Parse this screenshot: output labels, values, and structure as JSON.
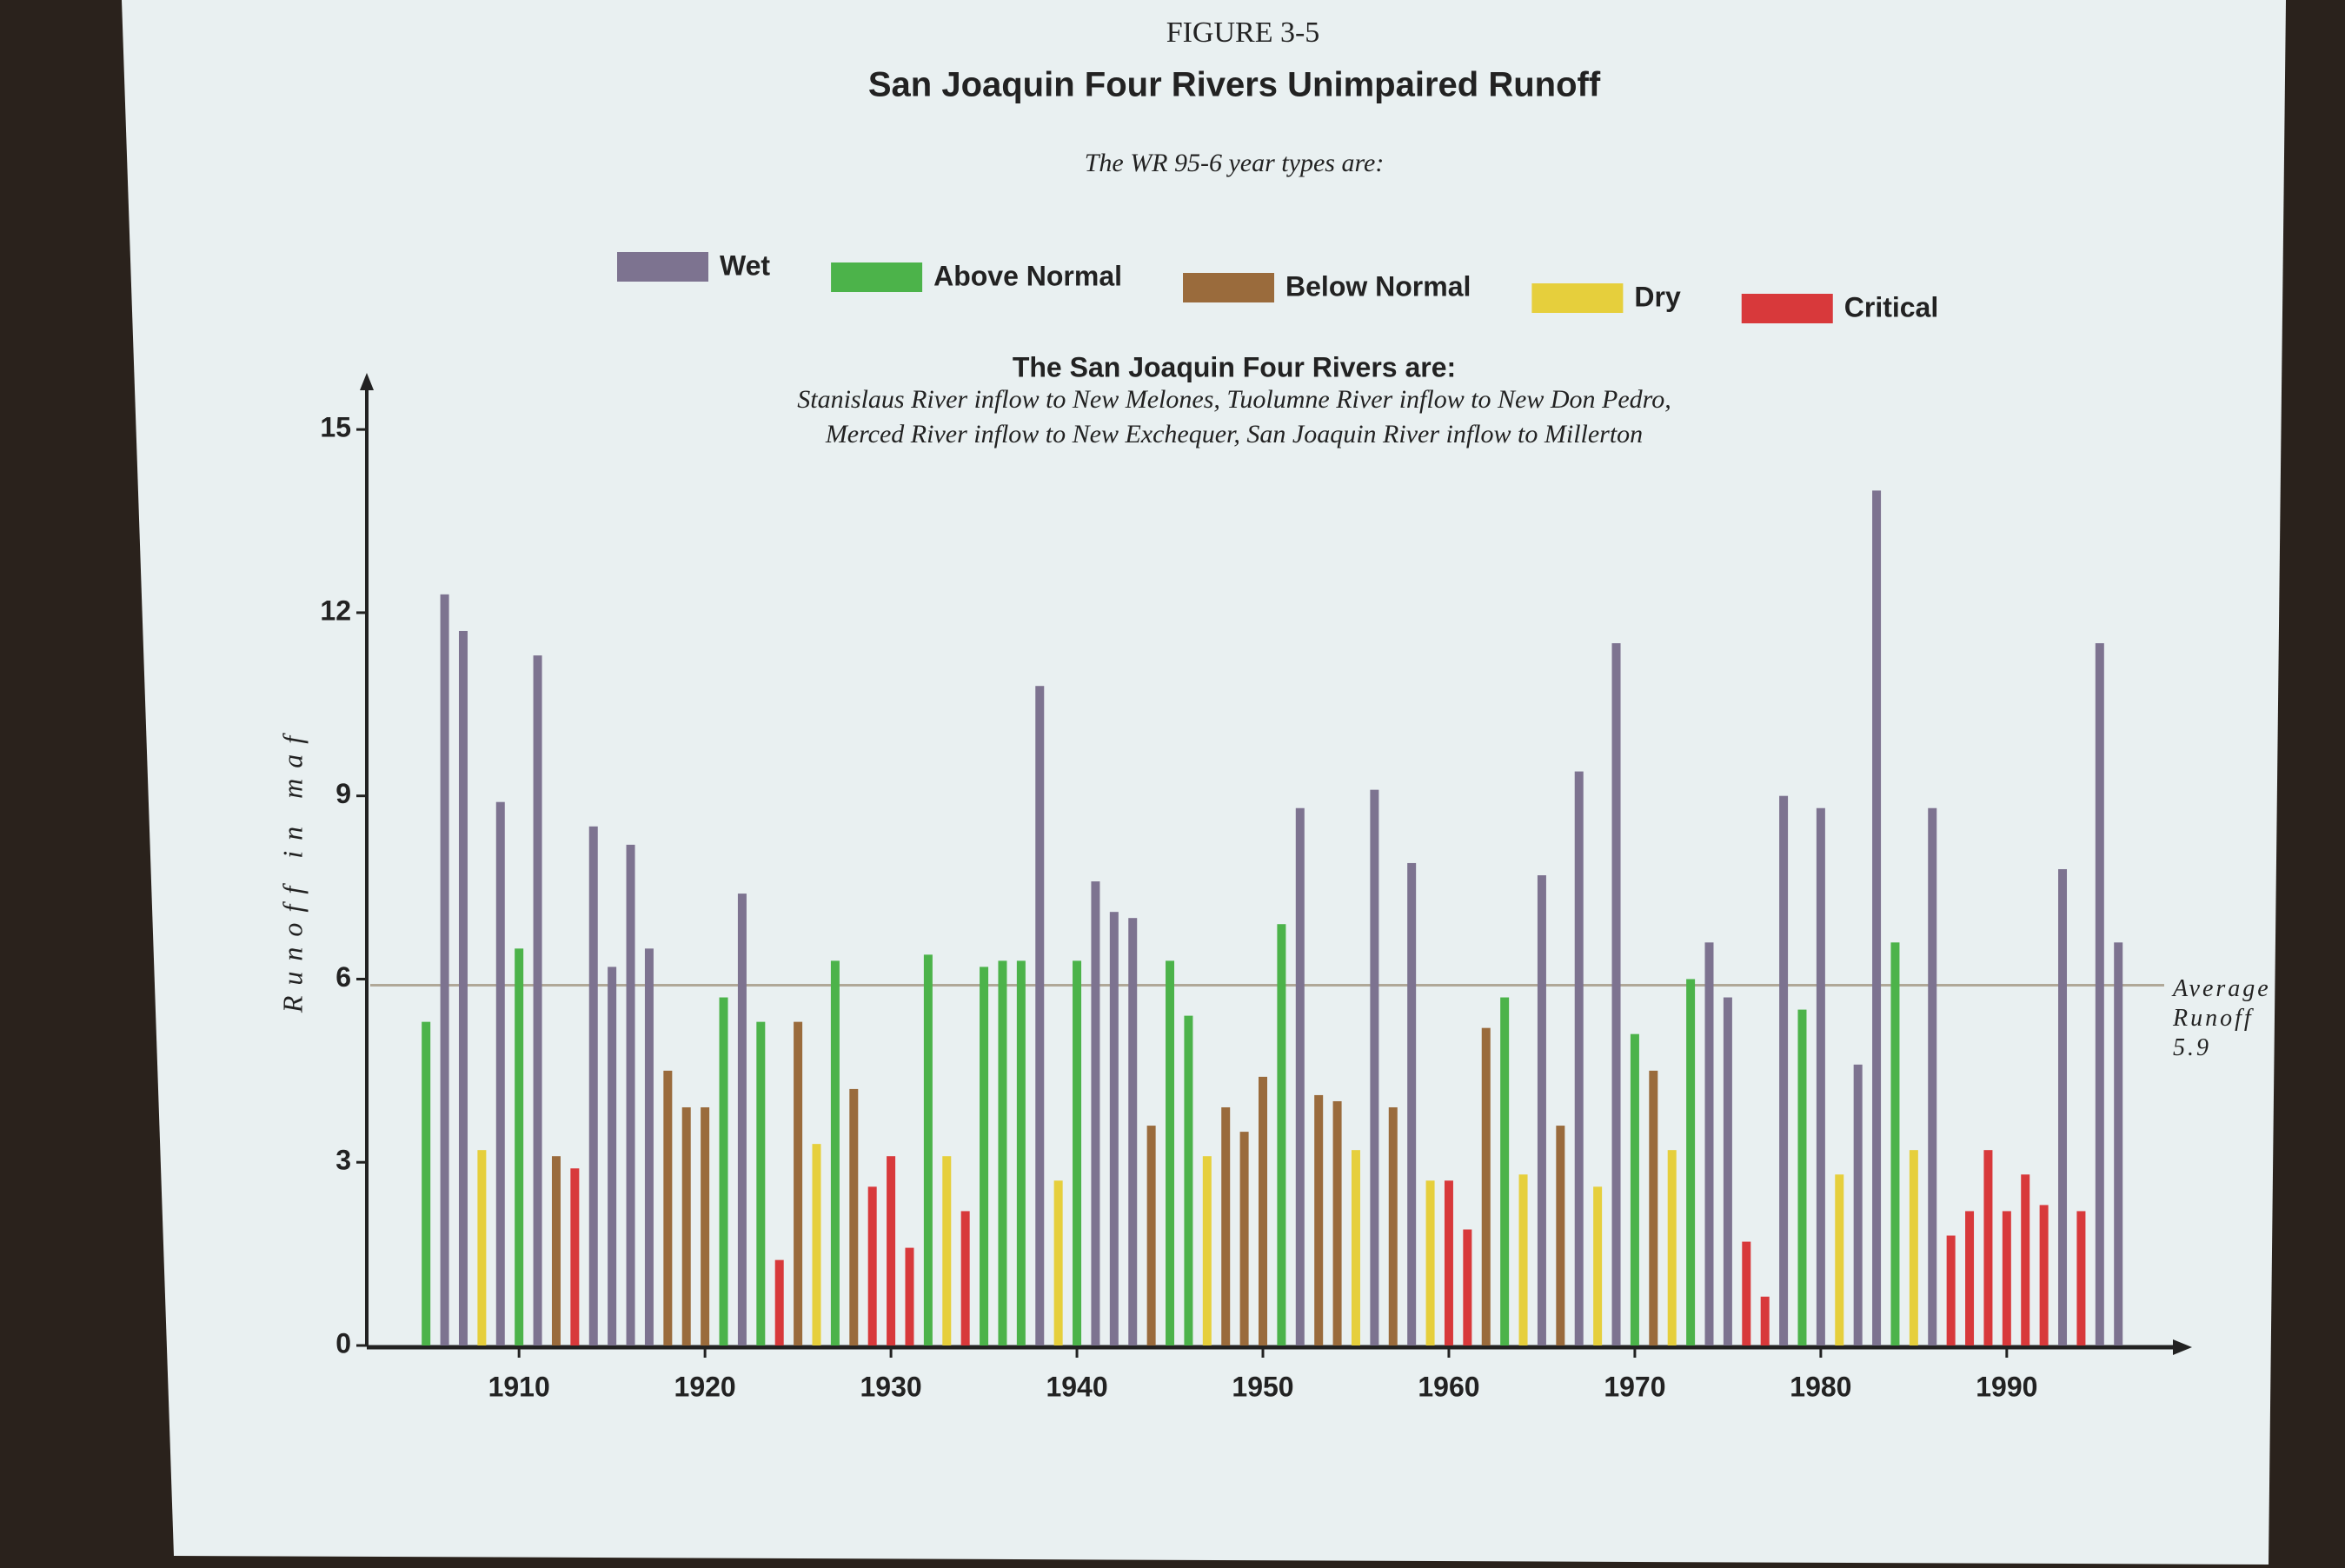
{
  "chart_data": {
    "type": "bar",
    "figure_label": "FIGURE 3-5",
    "title": "San Joaquin Four Rivers Unimpaired Runoff",
    "subtitle": "The WR 95-6 year types are:",
    "rivers_heading": "The San Joaquin Four Rivers are:",
    "rivers_notes": [
      "Stanislaus River inflow to New Melones, Tuolumne River inflow to New Don Pedro,",
      "Merced River inflow to New Exchequer, San Joaquin River inflow to Millerton"
    ],
    "y_label": "Runoff in maf",
    "ylim": [
      0,
      15.5
    ],
    "yticks": [
      0,
      3,
      6,
      9,
      12,
      15
    ],
    "xlim": [
      1902,
      1998
    ],
    "xticks": [
      1910,
      1920,
      1930,
      1940,
      1950,
      1960,
      1970,
      1980,
      1990
    ],
    "reference_line": {
      "label": [
        "Average",
        "Runoff"
      ],
      "value": 5.9,
      "color": "#b0a898"
    },
    "series": [
      {
        "name": "Wet",
        "color": "#7d7390",
        "x": [
          1906,
          1907,
          1909,
          1911,
          1914,
          1915,
          1916,
          1917,
          1922,
          1938,
          1941,
          1942,
          1943,
          1952,
          1956,
          1958,
          1965,
          1967,
          1969,
          1974,
          1975,
          1978,
          1980,
          1982,
          1983,
          1986,
          1993,
          1995,
          1996
        ],
        "values": [
          12.3,
          11.7,
          8.9,
          11.3,
          8.5,
          6.2,
          8.2,
          6.5,
          7.4,
          10.8,
          7.6,
          7.1,
          7.0,
          8.8,
          9.1,
          7.9,
          7.7,
          9.4,
          11.5,
          6.6,
          5.7,
          9.0,
          8.8,
          4.6,
          14.0,
          8.8,
          7.8,
          11.5,
          6.6
        ]
      },
      {
        "name": "Above Normal",
        "color": "#4cb34a",
        "x": [
          1905,
          1910,
          1921,
          1923,
          1927,
          1932,
          1935,
          1936,
          1937,
          1940,
          1945,
          1946,
          1951,
          1963,
          1970,
          1973,
          1979,
          1984
        ],
        "values": [
          5.3,
          6.5,
          5.7,
          5.3,
          6.3,
          6.4,
          6.2,
          6.3,
          6.3,
          6.3,
          6.3,
          5.4,
          6.9,
          5.7,
          5.1,
          6.0,
          5.5,
          6.6
        ]
      },
      {
        "name": "Below Normal",
        "color": "#9a6b3c",
        "x": [
          1912,
          1918,
          1919,
          1920,
          1925,
          1928,
          1944,
          1948,
          1949,
          1950,
          1953,
          1954,
          1957,
          1962,
          1966,
          1971
        ],
        "values": [
          3.1,
          4.5,
          3.9,
          3.9,
          5.3,
          4.2,
          3.6,
          3.9,
          3.5,
          4.4,
          4.1,
          4.0,
          3.9,
          5.2,
          3.6,
          4.5
        ]
      },
      {
        "name": "Dry",
        "color": "#e6cf3c",
        "x": [
          1908,
          1926,
          1933,
          1939,
          1947,
          1955,
          1959,
          1964,
          1968,
          1972,
          1981,
          1985
        ],
        "values": [
          3.2,
          3.3,
          3.1,
          2.7,
          3.1,
          3.2,
          2.7,
          2.8,
          2.6,
          3.2,
          2.8,
          3.2
        ]
      },
      {
        "name": "Critical",
        "color": "#d8393b",
        "x": [
          1913,
          1924,
          1929,
          1930,
          1931,
          1934,
          1960,
          1961,
          1976,
          1977,
          1987,
          1988,
          1989,
          1990,
          1991,
          1992,
          1994
        ],
        "values": [
          2.9,
          1.4,
          2.6,
          3.1,
          1.6,
          2.2,
          2.7,
          1.9,
          1.7,
          0.8,
          1.8,
          2.2,
          3.2,
          2.2,
          2.8,
          2.3,
          2.2
        ]
      }
    ]
  }
}
